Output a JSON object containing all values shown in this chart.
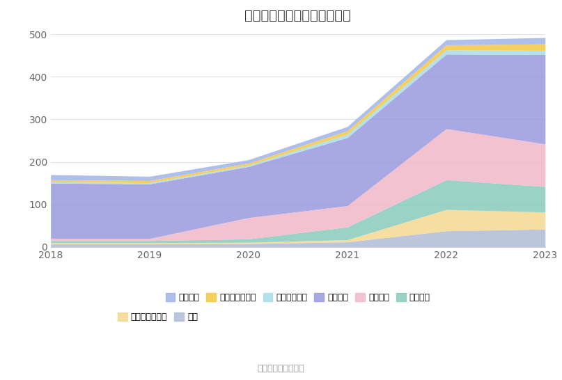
{
  "title": "历年主要资产堆积图（亿元）",
  "source_text": "数据来源：恒生聚源",
  "years": [
    2018,
    2019,
    2020,
    2021,
    2022,
    2023
  ],
  "series_bottom": [
    {
      "name": "其它",
      "color": "#b0bcd8",
      "values": [
        7,
        7,
        8,
        12,
        38,
        42
      ]
    },
    {
      "name": "其他非流动资产",
      "color": "#f5d890",
      "values": [
        3,
        3,
        3,
        5,
        50,
        40
      ]
    },
    {
      "name": "无形资产",
      "color": "#88ccbb",
      "values": [
        5,
        5,
        8,
        30,
        70,
        60
      ]
    },
    {
      "name": "在建工程",
      "color": "#f0b8c8",
      "values": [
        5,
        5,
        50,
        50,
        120,
        100
      ]
    }
  ],
  "series_fixed": {
    "name": "固定资产",
    "color": "#9999dd",
    "values": [
      130,
      128,
      120,
      160,
      175,
      210
    ]
  },
  "series_top": [
    {
      "name": "应收款项融资",
      "color": "#a8dce8",
      "values": [
        3,
        3,
        3,
        8,
        10,
        10
      ]
    },
    {
      "name": "交易性金融资产",
      "color": "#f5c842",
      "values": [
        5,
        5,
        5,
        8,
        12,
        15
      ]
    },
    {
      "name": "货币资金",
      "color": "#a0b4e8",
      "values": [
        12,
        10,
        8,
        10,
        12,
        15
      ]
    }
  ],
  "ylim": [
    0,
    500
  ],
  "yticks": [
    0,
    100,
    200,
    300,
    400,
    500
  ],
  "background_color": "#ffffff",
  "grid_color": "#e0e0e8"
}
